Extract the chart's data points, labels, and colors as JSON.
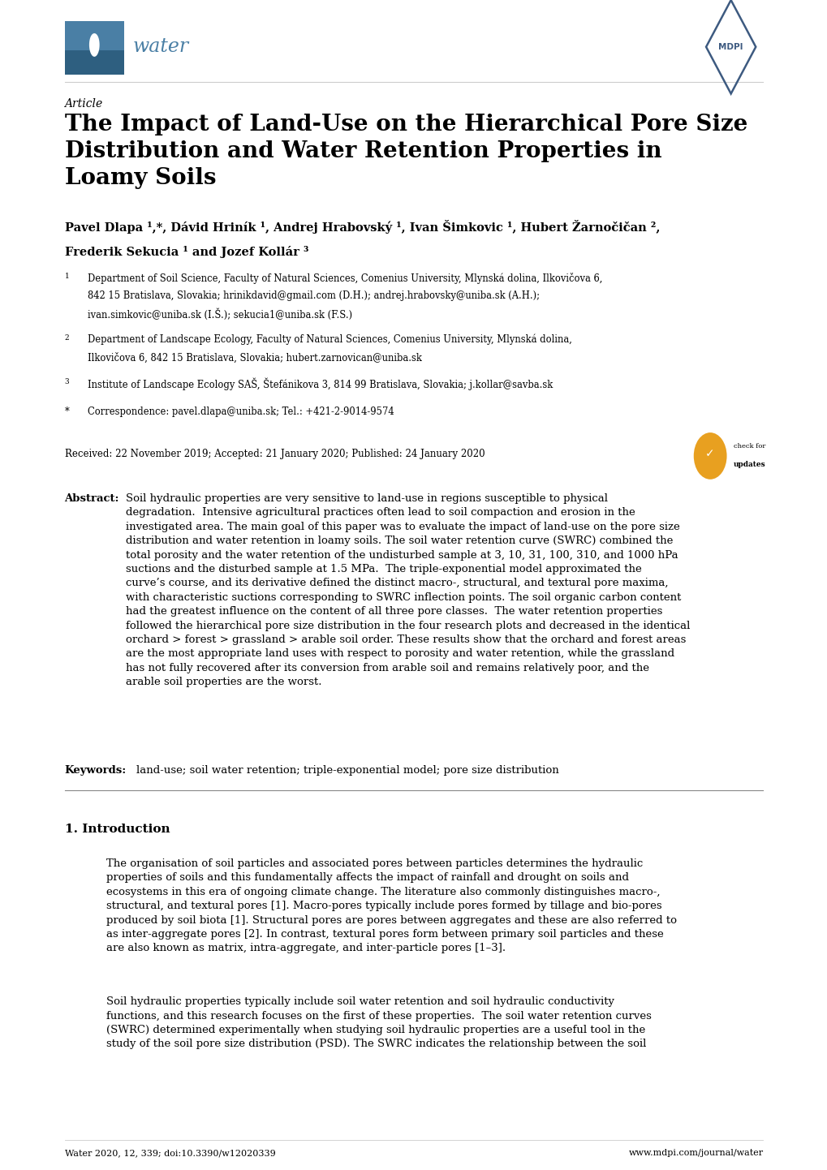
{
  "background_color": "#ffffff",
  "page_width": 10.2,
  "page_height": 14.42,
  "water_logo_color": "#4a7fa5",
  "mdpi_color": "#3d5a80",
  "article_label": "Article",
  "title": "The Impact of Land-Use on the Hierarchical Pore Size\nDistribution and Water Retention Properties in\nLoamy Soils",
  "author_line1": "Pavel Dlapa ¹,*, Dávid Hriník ¹, Andrej Hrabovský ¹, Ivan Šimkovic ¹, Hubert Žarnočičan ²,",
  "author_line2": "Frederik Sekucia ¹ and Jozef Kollár ³",
  "aff1_num": "1",
  "aff1_line1": "Department of Soil Science, Faculty of Natural Sciences, Comenius University, Mlynská dolina, Ilkovičova 6,",
  "aff1_line2": "842 15 Bratislava, Slovakia; hrinikdavid@gmail.com (D.H.); andrej.hrabovsky@uniba.sk (A.H.);",
  "aff1_line3": "ivan.simkovic@uniba.sk (I.Š.); sekucia1@uniba.sk (F.S.)",
  "aff2_num": "2",
  "aff2_line1": "Department of Landscape Ecology, Faculty of Natural Sciences, Comenius University, Mlynská dolina,",
  "aff2_line2": "Ilkovičova 6, 842 15 Bratislava, Slovakia; hubert.zarnovican@uniba.sk",
  "aff3_num": "3",
  "aff3_line1": "Institute of Landscape Ecology SAŠ, Štefánikova 3, 814 99 Bratislava, Slovakia; j.kollar@savba.sk",
  "aff4_sym": "*",
  "aff4_line1": "Correspondence: pavel.dlapa@uniba.sk; Tel.: +421-2-9014-9574",
  "received": "Received: 22 November 2019; Accepted: 21 January 2020; Published: 24 January 2020",
  "abstract_label": "Abstract:",
  "abstract_body": "Soil hydraulic properties are very sensitive to land-use in regions susceptible to physical\ndegradation.  Intensive agricultural practices often lead to soil compaction and erosion in the\ninvestigated area. The main goal of this paper was to evaluate the impact of land-use on the pore size\ndistribution and water retention in loamy soils. The soil water retention curve (SWRC) combined the\ntotal porosity and the water retention of the undisturbed sample at 3, 10, 31, 100, 310, and 1000 hPa\nsuctions and the disturbed sample at 1.5 MPa.  The triple-exponential model approximated the\ncurve’s course, and its derivative defined the distinct macro-, structural, and textural pore maxima,\nwith characteristic suctions corresponding to SWRC inflection points. The soil organic carbon content\nhad the greatest influence on the content of all three pore classes.  The water retention properties\nfollowed the hierarchical pore size distribution in the four research plots and decreased in the identical\norchard > forest > grassland > arable soil order. These results show that the orchard and forest areas\nare the most appropriate land uses with respect to porosity and water retention, while the grassland\nhas not fully recovered after its conversion from arable soil and remains relatively poor, and the\narable soil properties are the worst.",
  "keywords_label": "Keywords:",
  "keywords_body": "land-use; soil water retention; triple-exponential model; pore size distribution",
  "section1_title": "1. Introduction",
  "intro_para1": "The organisation of soil particles and associated pores between particles determines the hydraulic\nproperties of soils and this fundamentally affects the impact of rainfall and drought on soils and\necosystems in this era of ongoing climate change. The literature also commonly distinguishes macro-,\nstructural, and textural pores [1]. Macro-pores typically include pores formed by tillage and bio-pores\nproduced by soil biota [1]. Structural pores are pores between aggregates and these are also referred to\nas inter-aggregate pores [2]. In contrast, textural pores form between primary soil particles and these\nare also known as matrix, intra-aggregate, and inter-particle pores [1–3].",
  "intro_para2": "Soil hydraulic properties typically include soil water retention and soil hydraulic conductivity\nfunctions, and this research focuses on the first of these properties.  The soil water retention curves\n(SWRC) determined experimentally when studying soil hydraulic properties are a useful tool in the\nstudy of the soil pore size distribution (PSD). The SWRC indicates the relationship between the soil",
  "footer_left": "Water 2020, 12, 339; doi:10.3390/w12020339",
  "footer_right": "www.mdpi.com/journal/water",
  "text_color": "#000000",
  "line_color_light": "#cccccc",
  "line_color_mid": "#888888",
  "badge_color": "#e8a020",
  "logo_rect_color": "#4a7fa5"
}
